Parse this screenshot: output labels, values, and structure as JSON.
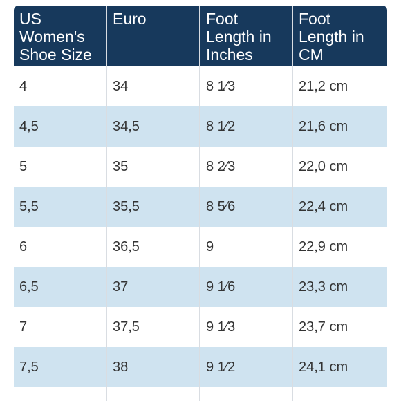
{
  "headers": [
    "US Women's Shoe Size",
    "Euro",
    "Foot Length in Inches",
    "Foot Length in CM"
  ],
  "rows": [
    [
      "4",
      "34",
      "8 1⁄3",
      "21,2 cm"
    ],
    [
      "4,5",
      "34,5",
      "8 1⁄2",
      "21,6 cm"
    ],
    [
      "5",
      "35",
      "8 2⁄3",
      "22,0 cm"
    ],
    [
      "5,5",
      "35,5",
      "8 5⁄6",
      "22,4 cm"
    ],
    [
      "6",
      "36,5",
      "9",
      "22,9 cm"
    ],
    [
      "6,5",
      "37",
      "9 1⁄6",
      "23,3 cm"
    ],
    [
      "7",
      "37,5",
      "9 1⁄3",
      "23,7 cm"
    ],
    [
      "7,5",
      "38",
      "9 1⁄2",
      "24,1 cm"
    ]
  ],
  "colors": {
    "header_bg": "#17395c",
    "header_text": "#ffffff",
    "stripe_bg": "#cfe3f0",
    "cell_text": "#333333"
  }
}
